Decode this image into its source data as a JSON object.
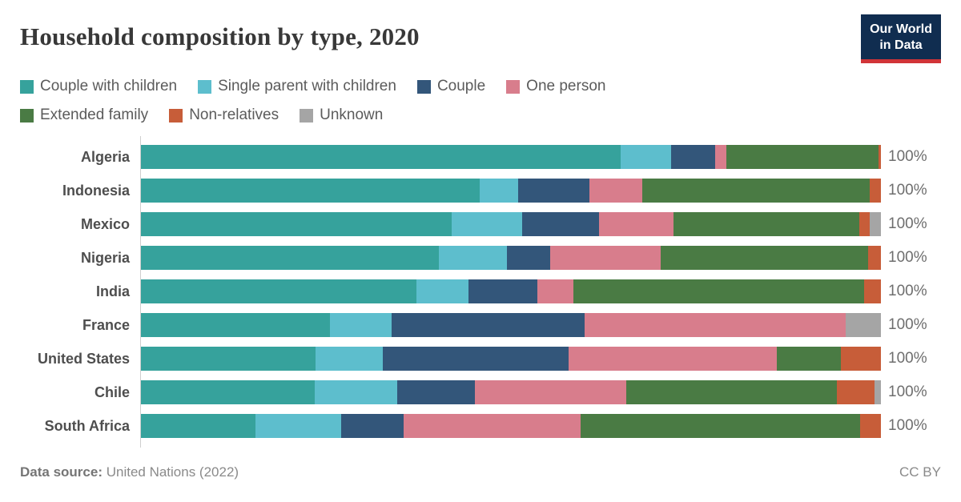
{
  "header": {
    "title": "Household composition by type, 2020",
    "logo_line1": "Our World",
    "logo_line2": "in Data",
    "logo_bg": "#102d50",
    "logo_accent": "#d13438"
  },
  "legend": {
    "break_after": 4,
    "items": [
      {
        "label": "Couple with children",
        "color": "#36a29c"
      },
      {
        "label": "Single parent with children",
        "color": "#5dbecd"
      },
      {
        "label": "Couple",
        "color": "#33567a"
      },
      {
        "label": "One person",
        "color": "#d87d8c"
      },
      {
        "label": "Extended family",
        "color": "#4a7b44"
      },
      {
        "label": "Non-relatives",
        "color": "#c75d39"
      },
      {
        "label": "Unknown",
        "color": "#a5a5a5"
      }
    ]
  },
  "chart_data": {
    "type": "bar",
    "orientation": "horizontal",
    "stacked": true,
    "title": "Household composition by type, 2020",
    "xlabel": "",
    "ylabel": "",
    "xlim": [
      0,
      100
    ],
    "grid": false,
    "legend_position": "top",
    "bar_total_label": "100%",
    "categories": [
      "Algeria",
      "Indonesia",
      "Mexico",
      "Nigeria",
      "India",
      "France",
      "United States",
      "Chile",
      "South Africa"
    ],
    "series": [
      {
        "name": "Couple with children",
        "color": "#36a29c",
        "values": [
          64.9,
          45.8,
          42.1,
          40.3,
          37.3,
          25.6,
          23.7,
          23.6,
          15.6
        ]
      },
      {
        "name": "Single parent with children",
        "color": "#5dbecd",
        "values": [
          6.8,
          5.2,
          9.5,
          9.2,
          7.0,
          8.4,
          9.1,
          11.1,
          11.5
        ]
      },
      {
        "name": "Couple",
        "color": "#33567a",
        "values": [
          5.9,
          9.7,
          10.4,
          5.8,
          9.3,
          26.0,
          25.0,
          10.5,
          8.5
        ]
      },
      {
        "name": "One person",
        "color": "#d87d8c",
        "values": [
          1.5,
          7.1,
          10.0,
          15.0,
          4.9,
          35.2,
          28.2,
          20.4,
          23.9
        ]
      },
      {
        "name": "Extended family",
        "color": "#4a7b44",
        "values": [
          20.6,
          30.7,
          25.1,
          28.0,
          39.2,
          0,
          8.6,
          28.5,
          37.7
        ]
      },
      {
        "name": "Non-relatives",
        "color": "#c75d39",
        "values": [
          0.3,
          1.5,
          1.4,
          1.7,
          2.3,
          0,
          5.4,
          5.0,
          2.8
        ]
      },
      {
        "name": "Unknown",
        "color": "#a5a5a5",
        "values": [
          0,
          0,
          1.5,
          0,
          0,
          4.8,
          0,
          0.9,
          0
        ]
      }
    ]
  },
  "footer": {
    "source_label": "Data source:",
    "source_value": " United Nations (2022)",
    "license": "CC BY"
  }
}
